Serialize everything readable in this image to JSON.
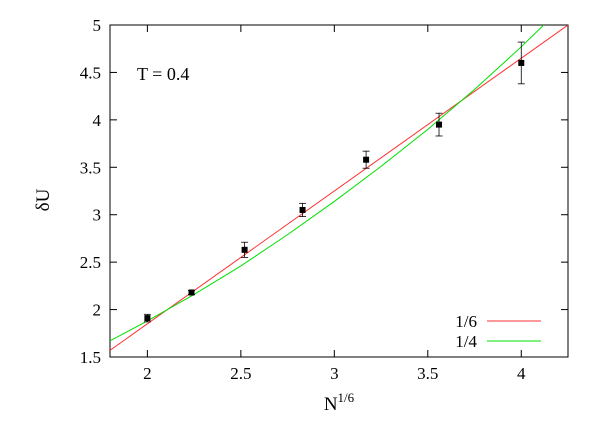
{
  "chart_data": {
    "type": "scatter",
    "annotation": "T = 0.4",
    "xlabel": "N",
    "xlabel_sup": "1/6",
    "ylabel": "δU",
    "xlim": [
      1.8,
      4.25
    ],
    "ylim": [
      1.5,
      5
    ],
    "xticks": [
      2,
      2.5,
      3,
      3.5,
      4
    ],
    "yticks": [
      1.5,
      2,
      2.5,
      3,
      3.5,
      4,
      4.5,
      5
    ],
    "xtick_labels": [
      "2",
      "2.5",
      "3",
      "3.5",
      "4"
    ],
    "ytick_labels": [
      "1.5",
      "2",
      "2.5",
      "3",
      "3.5",
      "4",
      "4.5",
      "5"
    ],
    "grid": false,
    "legend_position": "bottom-right",
    "points": [
      {
        "x": 2.0,
        "y": 1.91,
        "err": 0.04
      },
      {
        "x": 2.236,
        "y": 2.18,
        "err": 0.02
      },
      {
        "x": 2.52,
        "y": 2.63,
        "err": 0.08
      },
      {
        "x": 2.83,
        "y": 3.05,
        "err": 0.07
      },
      {
        "x": 3.17,
        "y": 3.58,
        "err": 0.09
      },
      {
        "x": 3.56,
        "y": 3.95,
        "err": 0.12
      },
      {
        "x": 4.0,
        "y": 4.6,
        "err": 0.22
      }
    ],
    "fits": [
      {
        "name": "1/6",
        "color": "#ff3030",
        "points": [
          [
            1.8,
            1.57
          ],
          [
            4.25,
            5.0
          ]
        ]
      },
      {
        "name": "1/4",
        "color": "#00e000",
        "points": [
          [
            1.8,
            1.67
          ],
          [
            2.0,
            1.88
          ],
          [
            2.25,
            2.16
          ],
          [
            2.5,
            2.46
          ],
          [
            2.75,
            2.79
          ],
          [
            3.0,
            3.14
          ],
          [
            3.25,
            3.51
          ],
          [
            3.5,
            3.9
          ],
          [
            3.75,
            4.32
          ],
          [
            4.0,
            4.77
          ],
          [
            4.12,
            5.0
          ]
        ]
      }
    ]
  }
}
